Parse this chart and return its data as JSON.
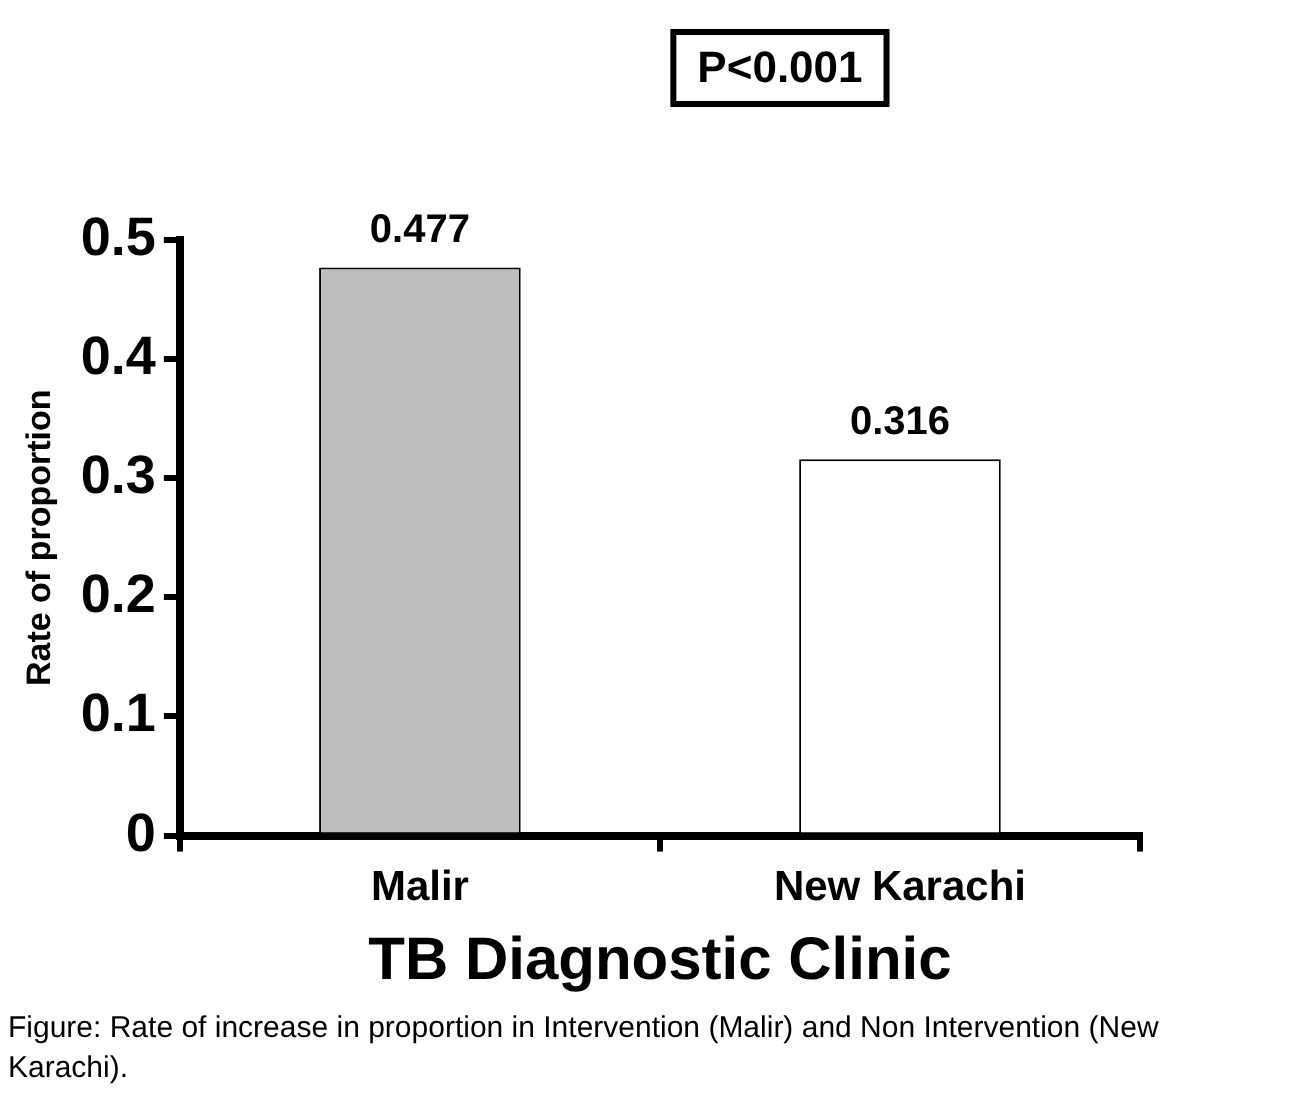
{
  "chart_data": {
    "type": "bar",
    "xlabel": "TB Diagnostic Clinic",
    "ylabel": "Rate of proportion",
    "categories": [
      "Malir",
      "New Karachi"
    ],
    "values": [
      0.477,
      0.316
    ],
    "colors": [
      "#bdbdbd",
      "#ffffff"
    ],
    "ylim": [
      0,
      0.5
    ],
    "yticks": [
      0,
      0.1,
      0.2,
      0.3,
      0.4,
      0.5
    ],
    "data_labels": true,
    "annotations": [
      "P<0.001",
      "Figure: Rate of increase in proportion in Intervention (Malir) and Non Intervention (New Karachi)."
    ]
  }
}
